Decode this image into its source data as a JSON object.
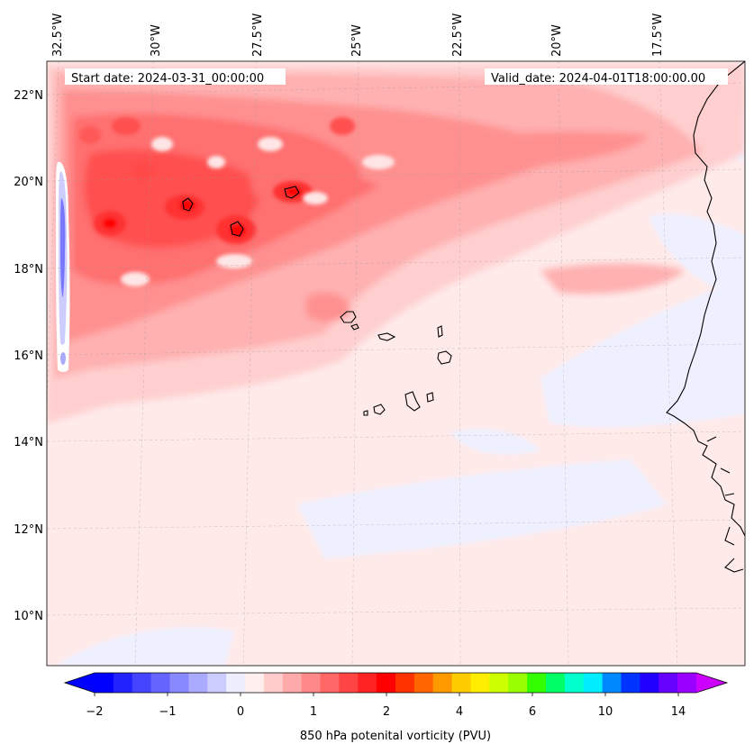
{
  "map": {
    "top_labels": [
      "32.5°W",
      "30°W",
      "27.5°W",
      "25°W",
      "22.5°W",
      "20°W",
      "17.5°W"
    ],
    "left_labels": [
      "22°N",
      "20°N",
      "18°N",
      "16°N",
      "14°N",
      "12°N",
      "10°N"
    ],
    "start_date": "Start date: 2024-03-31_00:00:00",
    "valid_date": "Valid_date: 2024-04-01T18:00:00.00",
    "field_description": "850 hPa potential vorticity shading; strong positive band across the north-west, near-zero light pink elsewhere, small negative streak near western edge"
  },
  "colorbar": {
    "label": "850 hPa potenital vorticity (PVU)",
    "tick_labels": [
      "−2",
      "−1",
      "0",
      "1",
      "2",
      "4",
      "6",
      "10",
      "14"
    ],
    "colors": [
      "#0000ff",
      "#2222ff",
      "#4444ff",
      "#6666ff",
      "#8888ff",
      "#aaaaff",
      "#ccccff",
      "#eeeeff",
      "#ffeeee",
      "#ffcccc",
      "#ffaaaa",
      "#ff8888",
      "#ff6666",
      "#ff4444",
      "#ff2222",
      "#ff0000",
      "#ff3300",
      "#ff6600",
      "#ff9900",
      "#ffcc00",
      "#ffee00",
      "#ccff00",
      "#99ff00",
      "#33ff00",
      "#00ff66",
      "#00ffcc",
      "#00eeff",
      "#0088ff",
      "#0033ff",
      "#2200ff",
      "#6600ff",
      "#9900ff"
    ],
    "under_color": "#0000ff",
    "over_color": "#cc00ff"
  }
}
